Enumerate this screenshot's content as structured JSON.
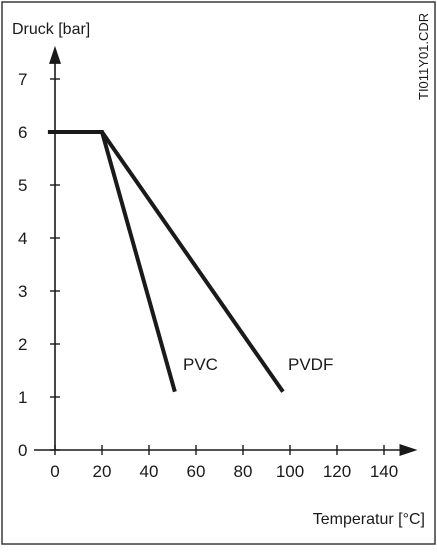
{
  "chart_data": {
    "type": "line",
    "ylabel": "Druck [bar]",
    "xlabel": "Temperatur [°C]",
    "code": "TI011Y01.CDR",
    "xlim": [
      0,
      150
    ],
    "ylim": [
      0,
      7.7
    ],
    "x_ticks": [
      0,
      20,
      40,
      60,
      80,
      100,
      120,
      140
    ],
    "y_ticks": [
      0,
      1,
      2,
      3,
      4,
      5,
      6,
      7
    ],
    "series": [
      {
        "name": "PVC",
        "points": [
          [
            -3,
            6
          ],
          [
            20,
            6
          ],
          [
            51,
            1.1
          ]
        ]
      },
      {
        "name": "PVDF",
        "points": [
          [
            -3,
            6
          ],
          [
            20,
            6
          ],
          [
            97,
            1.1
          ]
        ]
      }
    ]
  }
}
